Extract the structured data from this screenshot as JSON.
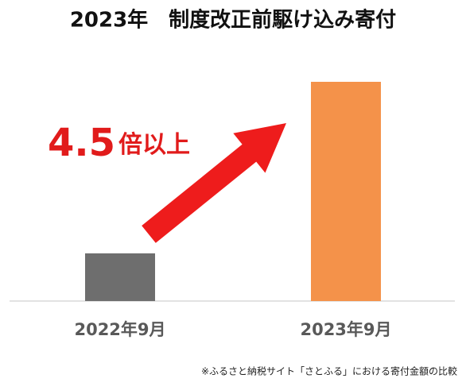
{
  "chart_data": {
    "type": "bar",
    "title": "2023年　制度改正前駆け込み寄付",
    "categories": [
      "2022年9月",
      "2023年9月"
    ],
    "values": [
      1,
      4.6
    ],
    "colors": [
      "#6e6e6e",
      "#f4924a"
    ],
    "ylim": [
      0,
      5
    ],
    "annotation": [
      "4.5",
      "倍以上"
    ],
    "footnote": "※ふるさと納税サイト「さとふる」における寄付金額の比較"
  }
}
